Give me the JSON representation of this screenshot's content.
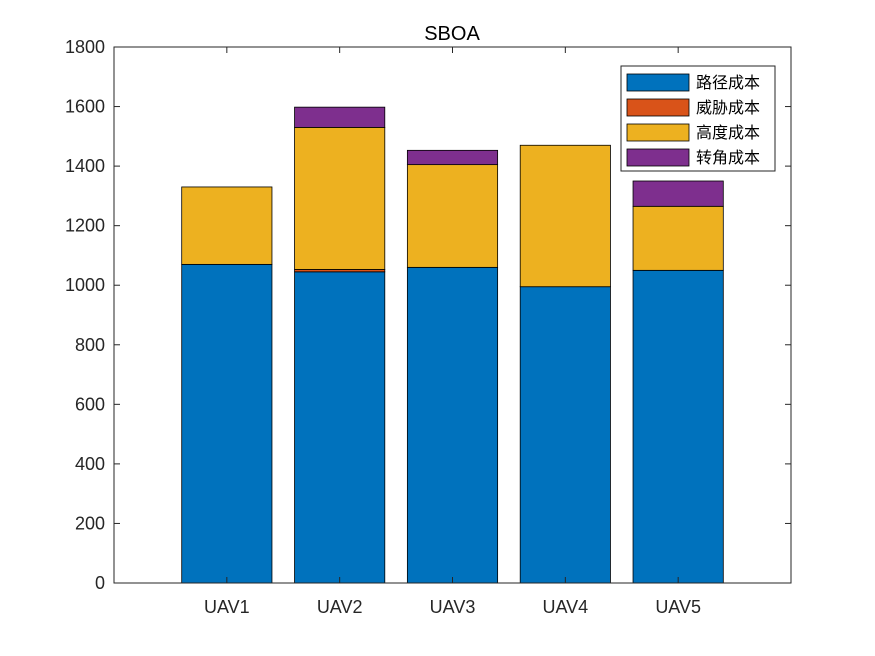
{
  "chart_data": {
    "type": "bar",
    "stacked": true,
    "title": "SBOA",
    "xlabel": "",
    "ylabel": "",
    "categories": [
      "UAV1",
      "UAV2",
      "UAV3",
      "UAV4",
      "UAV5"
    ],
    "ylim": [
      0,
      1800
    ],
    "yticks": [
      0,
      200,
      400,
      600,
      800,
      1000,
      1200,
      1400,
      1600,
      1800
    ],
    "xlim": [
      0,
      6
    ],
    "grid": false,
    "legend_position": "top-right",
    "series": [
      {
        "name": "路径成本",
        "color": "#0072BD",
        "values": [
          1070,
          1045,
          1060,
          995,
          1050
        ]
      },
      {
        "name": "威胁成本",
        "color": "#D95319",
        "values": [
          0,
          8,
          0,
          0,
          0
        ]
      },
      {
        "name": "高度成本",
        "color": "#EDB120",
        "values": [
          260,
          477,
          345,
          475,
          215
        ]
      },
      {
        "name": "转角成本",
        "color": "#7E2F8E",
        "values": [
          0,
          68,
          48,
          0,
          85
        ]
      }
    ]
  }
}
